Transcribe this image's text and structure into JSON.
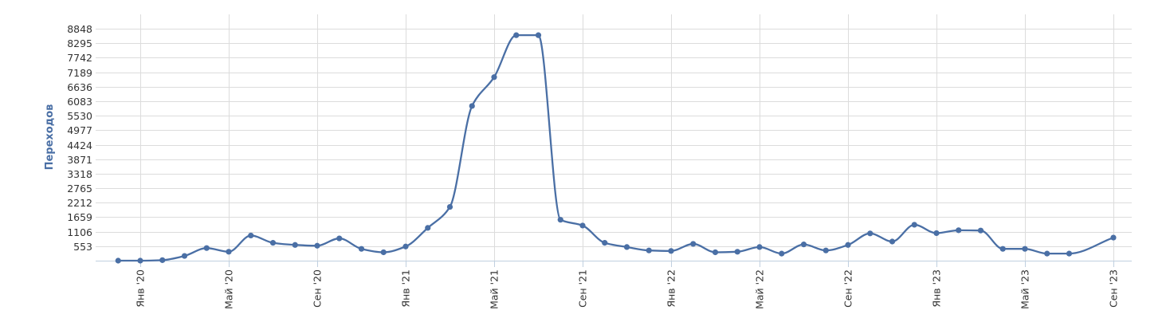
{
  "chart_data": {
    "type": "line",
    "title": "",
    "xlabel": "",
    "ylabel": "Переходов",
    "colors": {
      "line": "#4a6fa5",
      "point": "#4a6fa5",
      "grid": "#dcdcdc",
      "axis": "#c0d0e0"
    },
    "grid": true,
    "legend": "none",
    "ylim": [
      0,
      8848
    ],
    "y_ticks": [
      553,
      1106,
      1659,
      2212,
      2765,
      3318,
      3871,
      4424,
      4977,
      5530,
      6083,
      6636,
      7189,
      7742,
      8295,
      8848
    ],
    "x_ticks": [
      {
        "label": "Янв '20",
        "date": "2020-01"
      },
      {
        "label": "Май '20",
        "date": "2020-05"
      },
      {
        "label": "Сен '20",
        "date": "2020-09"
      },
      {
        "label": "Янв '21",
        "date": "2021-01"
      },
      {
        "label": "Май '21",
        "date": "2021-05"
      },
      {
        "label": "Сен '21",
        "date": "2021-09"
      },
      {
        "label": "Янв '22",
        "date": "2022-01"
      },
      {
        "label": "Май '22",
        "date": "2022-05"
      },
      {
        "label": "Сен '22",
        "date": "2022-09"
      },
      {
        "label": "Янв '23",
        "date": "2023-01"
      },
      {
        "label": "Май '23",
        "date": "2023-05"
      },
      {
        "label": "Сен '23",
        "date": "2023-09"
      }
    ],
    "series": [
      {
        "x": [
          "2019-12",
          "2020-01",
          "2020-02",
          "2020-03",
          "2020-04",
          "2020-05",
          "2020-06",
          "2020-07",
          "2020-08",
          "2020-09",
          "2020-10",
          "2020-11",
          "2020-12",
          "2021-01",
          "2021-02",
          "2021-03",
          "2021-04",
          "2021-05",
          "2021-06",
          "2021-07",
          "2021-08",
          "2021-09",
          "2021-10",
          "2021-11",
          "2021-12",
          "2022-01",
          "2022-02",
          "2022-03",
          "2022-04",
          "2022-05",
          "2022-06",
          "2022-07",
          "2022-08",
          "2022-09",
          "2022-10",
          "2022-11",
          "2022-12",
          "2023-01",
          "2023-02",
          "2023-03",
          "2023-04",
          "2023-05",
          "2023-06",
          "2023-07",
          "2023-09"
        ],
        "y": [
          0,
          0,
          20,
          180,
          480,
          340,
          960,
          680,
          600,
          570,
          850,
          450,
          320,
          540,
          1250,
          2050,
          5900,
          7000,
          8600,
          8600,
          1560,
          1340,
          680,
          520,
          390,
          370,
          640,
          320,
          340,
          520,
          270,
          620,
          390,
          600,
          1040,
          730,
          1370,
          1050,
          1160,
          1150,
          450,
          450,
          270,
          270,
          880
        ]
      }
    ]
  }
}
